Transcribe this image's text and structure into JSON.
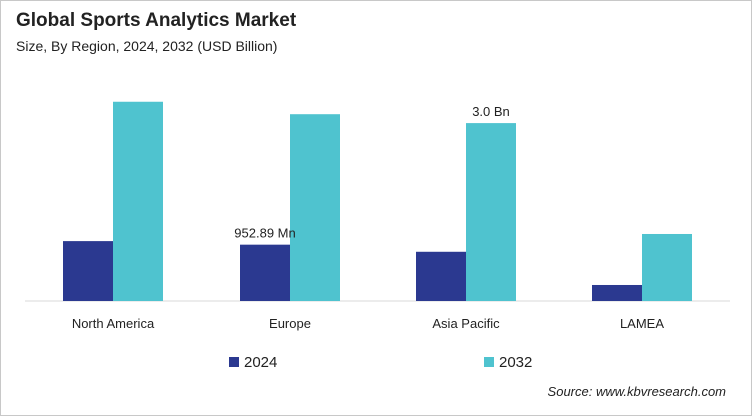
{
  "chart_data": {
    "type": "bar",
    "title": "Global Sports Analytics Market",
    "subtitle": "Size, By Region, 2024, 2032 (USD Billion)",
    "categories": [
      "North America",
      "Europe",
      "Asia Pacific",
      "LAMEA"
    ],
    "series": [
      {
        "name": "2024",
        "color": "#2b3990",
        "values": [
          1.01,
          0.95,
          0.83,
          0.27
        ]
      },
      {
        "name": "2032",
        "color": "#4fc3cf",
        "values": [
          3.36,
          3.15,
          3.0,
          1.13
        ]
      }
    ],
    "annotations": [
      {
        "category": "Europe",
        "series": "2024",
        "text": "952.89 Mn"
      },
      {
        "category": "Asia Pacific",
        "series": "2032",
        "text": "3.0 Bn"
      }
    ],
    "ylim": [
      0,
      3.4
    ],
    "grid": false,
    "legend": "bottom",
    "source": "Source: www.kbvresearch.com"
  }
}
